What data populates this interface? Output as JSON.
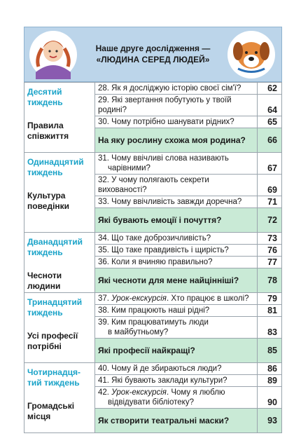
{
  "header": {
    "title_line1": "Наше друге дослідження —",
    "title_line2": "«ЛЮДИНА СЕРЕД ЛЮДЕЙ»"
  },
  "colors": {
    "header_bg": "#bcd5ea",
    "week_label": "#1aa3c8",
    "final_row_bg": "#c9ead6"
  },
  "weeks": [
    {
      "week": [
        "Десятий",
        "тиждень"
      ],
      "topic": [
        "Правила",
        "співжиття"
      ],
      "lessons": [
        {
          "text": "28. Як я досліджую історію своєї сім'ї?",
          "page": "62"
        },
        {
          "text": "29. Які звертання побутують у твоїй родині?",
          "page": "64"
        },
        {
          "text": "30. Чому потрібно шанувати рідних?",
          "page": "65"
        }
      ],
      "final": {
        "text": "На яку рослину схожа моя родина?",
        "page": "66"
      }
    },
    {
      "week": [
        "Одинадцятий",
        "тиждень"
      ],
      "topic": [
        "Культура",
        "поведінки"
      ],
      "lessons": [
        {
          "text": "31. Чому ввічливі слова називають",
          "text2": "чарівними?",
          "page": "67"
        },
        {
          "text": "32. У чому полягають секрети вихованості?",
          "page": "69"
        },
        {
          "text": "33. Чому ввічливість завжди доречна?",
          "page": "71"
        }
      ],
      "final": {
        "text": "Які бувають емоції і почуття?",
        "page": "72"
      }
    },
    {
      "week": [
        "Дванадцятий",
        "тиждень"
      ],
      "topic": [
        "Чесноти",
        "людини"
      ],
      "lessons": [
        {
          "text": "34. Що таке доброзичливість?",
          "page": "73"
        },
        {
          "text": "35. Що таке правдивість і щирість?",
          "page": "76"
        },
        {
          "text": "36. Коли я вчиняю правильно?",
          "page": "77"
        }
      ],
      "final": {
        "text": "Які чесноти для мене найцінніші?",
        "page": "78"
      }
    },
    {
      "week": [
        "Тринадцятий",
        "тиждень"
      ],
      "topic": [
        "Усі професії",
        "потрібні"
      ],
      "lessons": [
        {
          "prefix": "37. ",
          "italic": "Урок-екскурсія",
          "text": ". Хто працює в школі?",
          "page": "79"
        },
        {
          "text": "38. Ким працюють наші рідні?",
          "page": "81"
        },
        {
          "text": "39. Ким працюватимуть люди",
          "text2": "в майбутньому?",
          "page": "83"
        }
      ],
      "final": {
        "text": "Які професії найкращі?",
        "page": "85"
      }
    },
    {
      "week": [
        "Чотирнадця-",
        "тий тиждень"
      ],
      "topic": [
        "Громадські",
        "місця"
      ],
      "lessons": [
        {
          "text": "40. Чому й де збираються люди?",
          "page": "86"
        },
        {
          "text": "41. Які бувають заклади культури?",
          "page": "89"
        },
        {
          "prefix": "42. ",
          "italic": "Урок-екскурсія",
          "text": ". Чому я люблю",
          "text2": "відвідувати бібліотеку?",
          "page": "90"
        }
      ],
      "final": {
        "text": "Як створити театральні маски?",
        "page": "93"
      }
    }
  ]
}
